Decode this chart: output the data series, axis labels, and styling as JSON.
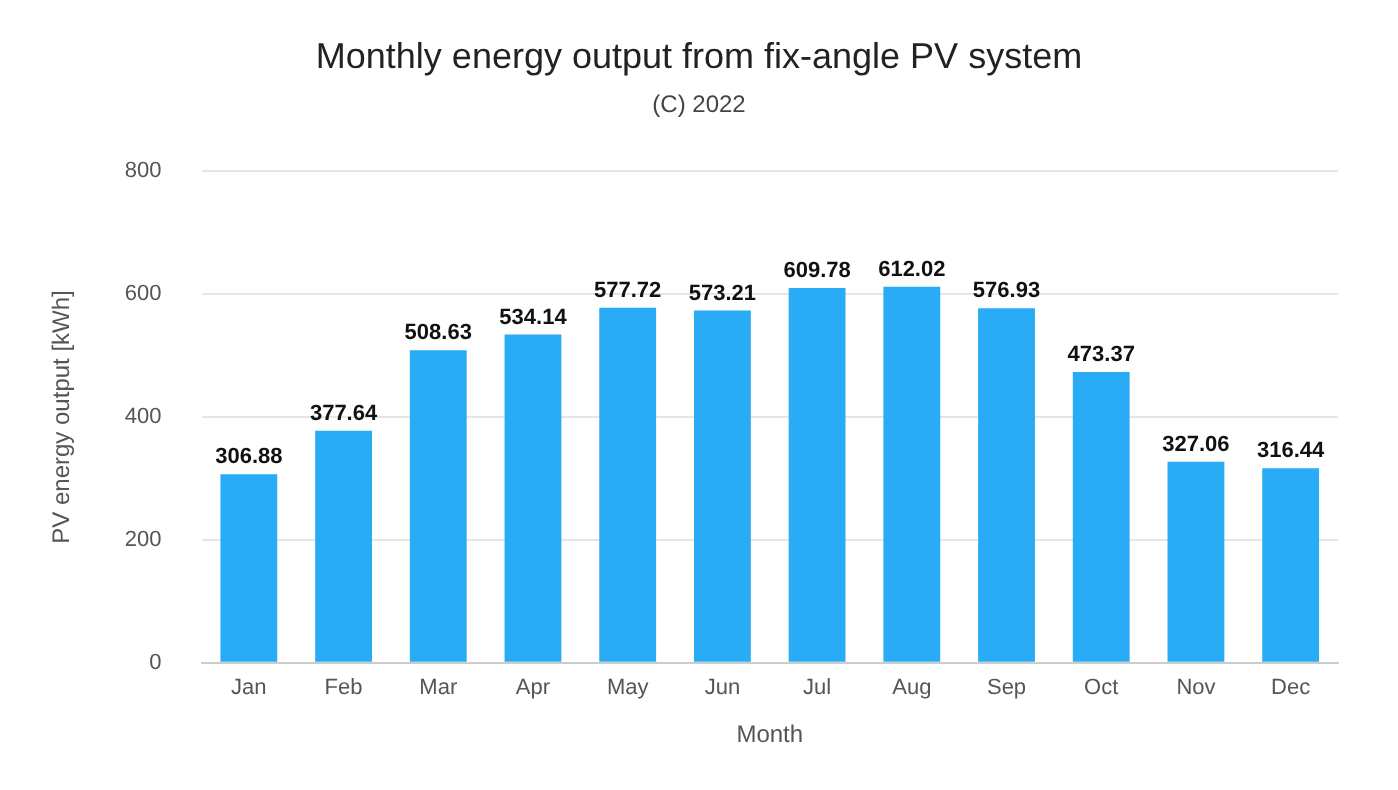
{
  "chart_data": {
    "type": "bar",
    "title": "Monthly energy output from fix-angle PV system",
    "subtitle": "(C) 2022",
    "xlabel": "Month",
    "ylabel": "PV energy output [kWh]",
    "categories": [
      "Jan",
      "Feb",
      "Mar",
      "Apr",
      "May",
      "Jun",
      "Jul",
      "Aug",
      "Sep",
      "Oct",
      "Nov",
      "Dec"
    ],
    "values": [
      306.88,
      377.64,
      508.63,
      534.14,
      577.72,
      573.21,
      609.78,
      612.02,
      576.93,
      473.37,
      327.06,
      316.44
    ],
    "color": "#29abf5",
    "ylim": [
      0,
      800
    ],
    "yticks": [
      0,
      200,
      400,
      600,
      800
    ],
    "grid": "y",
    "data_labels": true
  }
}
